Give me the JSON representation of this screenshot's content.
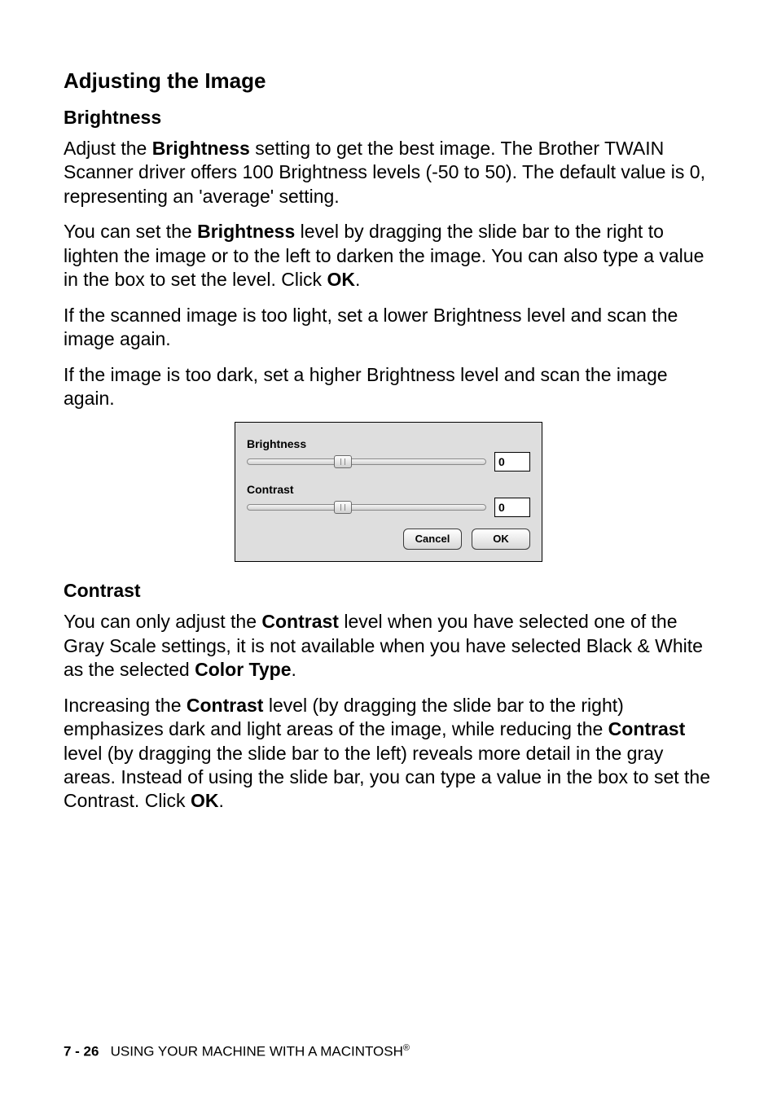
{
  "headings": {
    "h1": "Adjusting the Image",
    "h2_brightness": "Brightness",
    "h2_contrast": "Contrast"
  },
  "paragraphs": {
    "p1a": "Adjust the ",
    "p1b": "Brightness",
    "p1c": " setting to get the best image. The Brother TWAIN Scanner driver offers 100 Brightness levels (-50 to 50). The default value is 0, representing an 'average' setting.",
    "p2a": "You can set the ",
    "p2b": "Brightness",
    "p2c": " level by dragging the slide bar to the right to lighten the image or to the left to darken the image. You can also type a value in the box to set the level. Click ",
    "p2d": "OK",
    "p2e": ".",
    "p3": "If the scanned image is too light, set a lower Brightness level and scan the image again.",
    "p4": "If the image is too dark, set a higher Brightness level and scan the image again.",
    "p5a": "You can only adjust the ",
    "p5b": "Contrast",
    "p5c": " level when you have selected one of the Gray Scale settings, it is not available when you have selected Black & White as the selected ",
    "p5d": "Color Type",
    "p5e": ".",
    "p6a": "Increasing the ",
    "p6b": "Contrast",
    "p6c": " level (by dragging the slide bar to the right) emphasizes dark and light areas of the image, while reducing the ",
    "p6d": "Contrast",
    "p6e": " level (by dragging the slide bar to the left) reveals more detail in the gray areas. Instead of using the slide bar, you can type a value in the box to set the Contrast. Click ",
    "p6f": "OK",
    "p6g": "."
  },
  "dialog": {
    "background_color": "#dedede",
    "border_color": "#000000",
    "font": "Verdana",
    "brightness": {
      "label": "Brightness",
      "value": "0",
      "min": -50,
      "max": 50,
      "thumb_pos_pct": 40
    },
    "contrast": {
      "label": "Contrast",
      "value": "0",
      "min": -50,
      "max": 50,
      "thumb_pos_pct": 40
    },
    "buttons": {
      "cancel": "Cancel",
      "ok": "OK"
    }
  },
  "footer": {
    "page": "7 - 26",
    "text": "USING YOUR MACHINE WITH A MACINTOSH",
    "reg": "®"
  },
  "colors": {
    "text": "#000000",
    "page_bg": "#ffffff"
  },
  "typography": {
    "body_font": "Helvetica/Arial",
    "body_size_pt": 17,
    "h1_size_pt": 20,
    "h2_size_pt": 17
  }
}
